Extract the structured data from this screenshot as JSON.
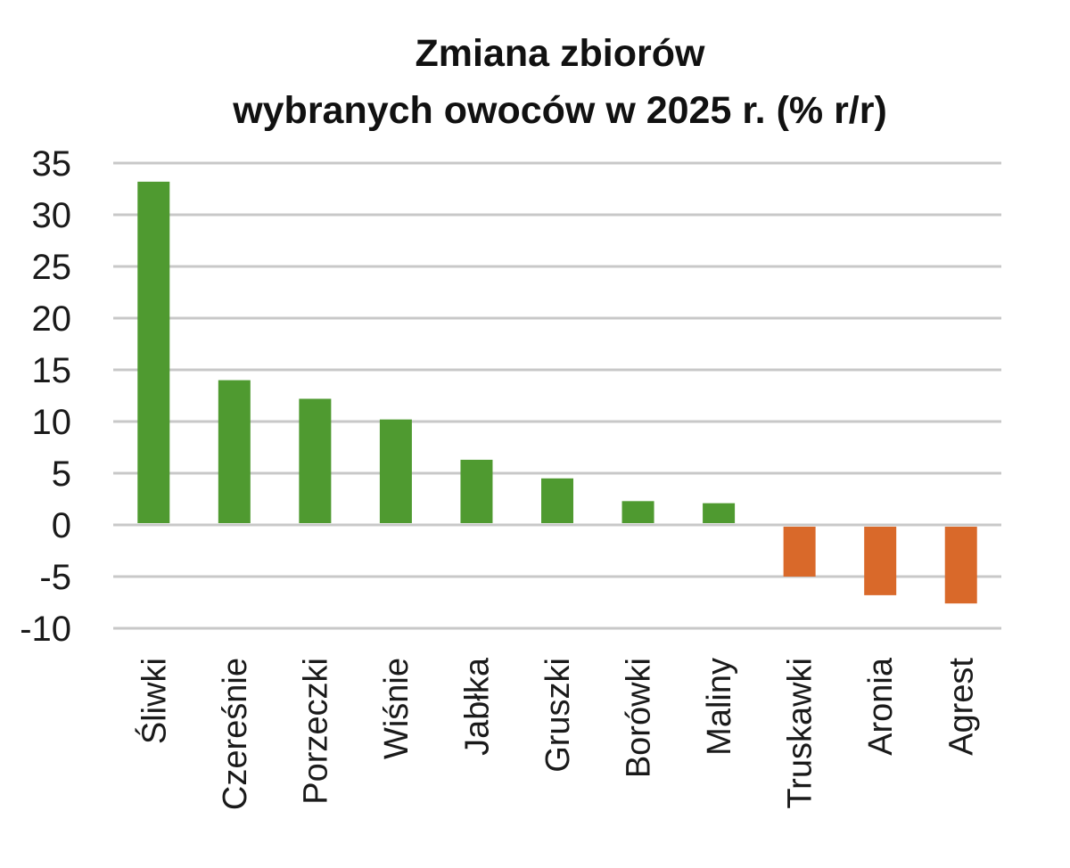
{
  "chart_data": {
    "type": "bar",
    "title": "Zmiana zbiorów wybranych owoców w 2025 r. (% r/r)",
    "title_lines": [
      "Zmiana zbiorów",
      "wybranych owoców w 2025 r. (% r/r)"
    ],
    "categories": [
      "Śliwki",
      "Czereśnie",
      "Porzeczki",
      "Wiśnie",
      "Jabłka",
      "Gruszki",
      "Borówki",
      "Maliny",
      "Truskawki",
      "Aronia",
      "Agrest"
    ],
    "values": [
      33.2,
      14.0,
      12.2,
      10.2,
      6.3,
      4.5,
      2.3,
      2.1,
      -5.0,
      -6.8,
      -7.6
    ],
    "ylim": [
      -10,
      35
    ],
    "yticks": [
      35,
      30,
      25,
      20,
      15,
      10,
      5,
      0,
      -5,
      -10
    ],
    "xlabel": "",
    "ylabel": "",
    "grid": true,
    "legend": "none",
    "colors": {
      "positive": "#4f9a30",
      "negative": "#d9692a",
      "grid": "#c8c8c8",
      "text": "#1a1a1a"
    }
  }
}
